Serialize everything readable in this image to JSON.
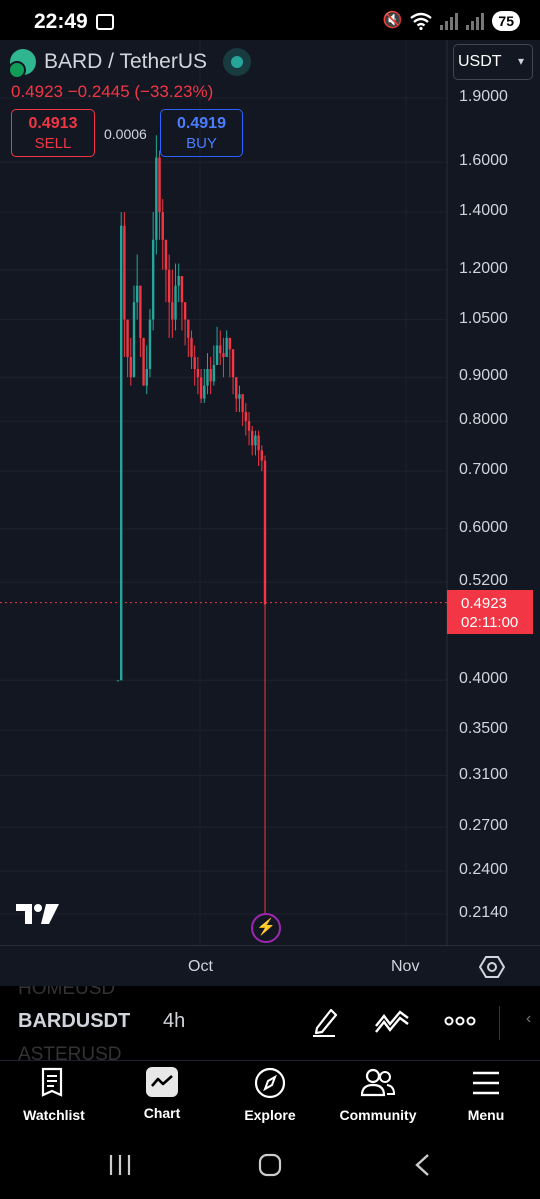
{
  "status_bar": {
    "time": "22:49",
    "battery": "75"
  },
  "symbol": {
    "name": "BARD / TetherUS",
    "quote": "0.4923 −0.2445 (−33.23%)"
  },
  "trade": {
    "sell_price": "0.4913",
    "sell_label": "SELL",
    "spread": "0.0006",
    "buy_price": "0.4919",
    "buy_label": "BUY"
  },
  "currency_selector": {
    "value": "USDT"
  },
  "price_axis": {
    "ticks": [
      "1.9000",
      "1.6000",
      "1.4000",
      "1.2000",
      "1.0500",
      "0.9000",
      "0.8000",
      "0.7000",
      "0.6000",
      "0.5200",
      "0.4000",
      "0.3500",
      "0.3100",
      "0.2700",
      "0.2400",
      "0.2140"
    ],
    "last_price": "0.4923",
    "countdown": "02:11:00"
  },
  "time_axis": {
    "labels": [
      "Oct",
      "Nov"
    ]
  },
  "symbol_bar": {
    "prev_symbol": "HOMEUSD",
    "current_symbol": "BARDUSDT",
    "next_symbol": "ASTERUSD",
    "interval": "4h"
  },
  "colors": {
    "up": "#26a69a",
    "down": "#f23645",
    "background": "#131722",
    "grid": "#1e222d",
    "buy": "#2962ff",
    "flash": "#9c27b0"
  },
  "nav": [
    {
      "label": "Watchlist",
      "icon": "watchlist-icon"
    },
    {
      "label": "Chart",
      "icon": "chart-icon"
    },
    {
      "label": "Explore",
      "icon": "compass-icon"
    },
    {
      "label": "Community",
      "icon": "community-icon"
    },
    {
      "label": "Menu",
      "icon": "menu-icon"
    }
  ],
  "chart_data": {
    "type": "candlestick",
    "symbol": "BARDUSDT",
    "interval": "4h",
    "scale": "log",
    "x_labels": [
      "Oct",
      "Nov"
    ],
    "y_ticks": [
      1.9,
      1.6,
      1.4,
      1.2,
      1.05,
      0.9,
      0.8,
      0.7,
      0.6,
      0.52,
      0.4,
      0.35,
      0.31,
      0.27,
      0.24,
      0.214
    ],
    "last_price": 0.4923,
    "series_close": [
      0.4,
      1.35,
      1.05,
      0.95,
      0.9,
      1.1,
      1.15,
      1.0,
      0.88,
      0.92,
      1.05,
      1.3,
      1.62,
      1.4,
      1.3,
      1.2,
      1.1,
      1.05,
      1.15,
      1.18,
      1.1,
      1.05,
      1.0,
      0.95,
      0.92,
      0.9,
      0.85,
      0.88,
      0.92,
      0.89,
      0.93,
      0.98,
      0.96,
      0.95,
      1.0,
      0.97,
      0.9,
      0.85,
      0.86,
      0.82,
      0.8,
      0.78,
      0.75,
      0.77,
      0.74,
      0.72,
      0.49
    ],
    "series_low": [
      0.4,
      0.4,
      0.95,
      0.9,
      0.88,
      0.92,
      1.05,
      0.95,
      0.88,
      0.86,
      0.9,
      1.02,
      1.25,
      1.3,
      1.2,
      1.1,
      1.0,
      1.0,
      1.02,
      1.1,
      1.02,
      0.98,
      0.95,
      0.92,
      0.88,
      0.86,
      0.84,
      0.84,
      0.86,
      0.86,
      0.88,
      0.94,
      0.93,
      0.9,
      0.95,
      0.9,
      0.86,
      0.82,
      0.82,
      0.79,
      0.77,
      0.75,
      0.73,
      0.73,
      0.71,
      0.7,
      0.214
    ],
    "series_high": [
      0.4,
      1.4,
      1.4,
      1.05,
      1.0,
      1.15,
      1.25,
      1.15,
      1.0,
      0.98,
      1.08,
      1.4,
      1.72,
      1.65,
      1.45,
      1.3,
      1.25,
      1.2,
      1.22,
      1.22,
      1.18,
      1.1,
      1.05,
      1.02,
      0.98,
      0.95,
      0.92,
      0.92,
      0.96,
      0.95,
      0.98,
      1.03,
      1.02,
      1.0,
      1.02,
      1.0,
      0.97,
      0.88,
      0.88,
      0.86,
      0.84,
      0.82,
      0.79,
      0.78,
      0.78,
      0.75,
      0.73
    ]
  }
}
